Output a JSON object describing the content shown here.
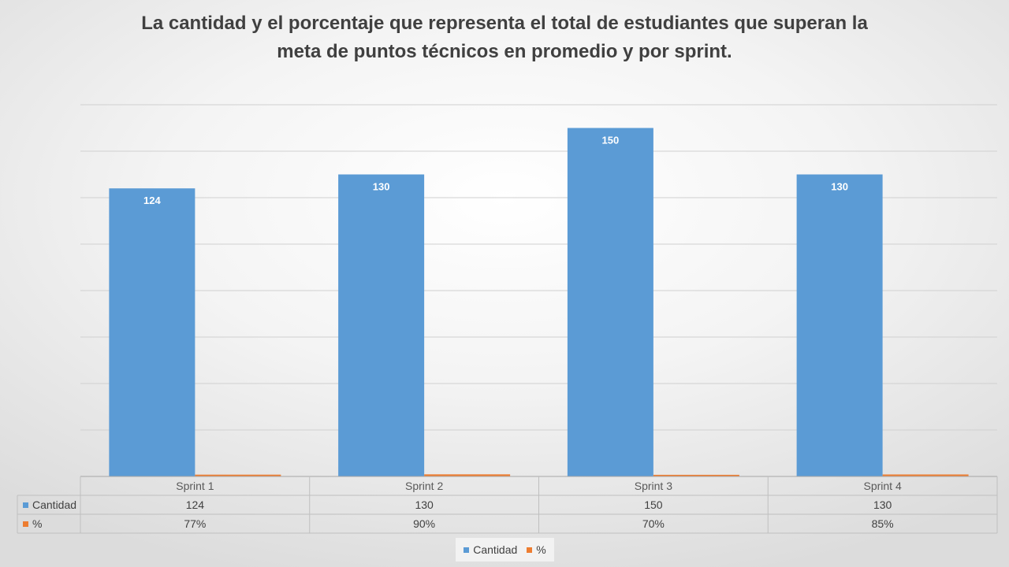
{
  "chart_data": {
    "type": "bar",
    "title": "La cantidad y el porcentaje que representa el total de estudiantes que superan la meta de puntos técnicos en promedio y por sprint.",
    "title_lines": [
      "La cantidad y el porcentaje que representa el total de estudiantes que superan la",
      "meta de puntos técnicos en promedio y por sprint."
    ],
    "categories": [
      "Sprint 1",
      "Sprint 2",
      "Sprint 3",
      "Sprint 4"
    ],
    "series": [
      {
        "name": "Cantidad",
        "values": [
          124,
          130,
          150,
          130
        ],
        "labels": [
          "124",
          "130",
          "150",
          "130"
        ],
        "color": "#5b9bd5"
      },
      {
        "name": "%",
        "values": [
          0.77,
          0.9,
          0.7,
          0.85
        ],
        "labels": [
          "77%",
          "90%",
          "70%",
          "85%"
        ],
        "color": "#ed7d31"
      }
    ],
    "ylim": [
      0,
      160
    ],
    "grid": true,
    "data_table": true,
    "legend_position": "bottom"
  }
}
